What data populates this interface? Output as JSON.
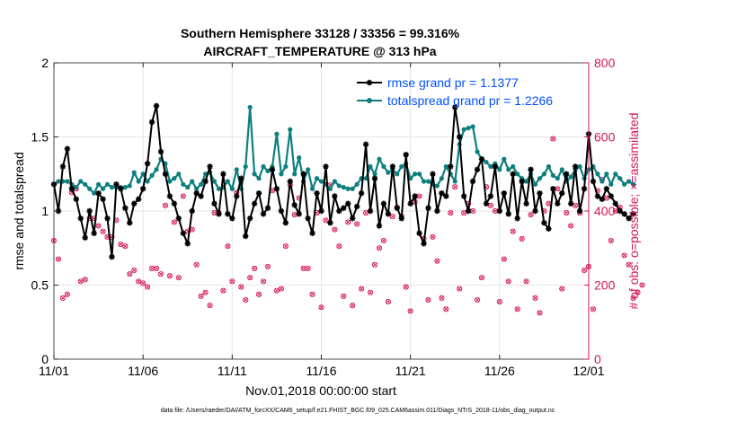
{
  "title": {
    "line1": "Southern Hemisphere 33128 / 33356 = 99.316%",
    "line2": "AIRCRAFT_TEMPERATURE @ 313 hPa"
  },
  "footer": {
    "xlabel": "Nov.01,2018 00:00:00 start",
    "datafile": "data file: /Users/raeder/DAI/ATM_forcXX/CAM6_setup/f.e21.FHIST_BGC.f09_025.CAM6assim.011/Diags_NTrS_2018-11/obs_diag_output.nc"
  },
  "colors": {
    "rmse": "#000000",
    "spread": "#0e7f7f",
    "obs": "#d4145a",
    "legend_text": "#0050ff",
    "grid": "#e6e6e6"
  },
  "chart_data": {
    "type": "line",
    "title": "Southern Hemisphere 33128 / 33356 = 99.316% — AIRCRAFT_TEMPERATURE @ 313 hPa",
    "xlabel": "Nov.01,2018 00:00:00 start",
    "ylabel": "rmse and totalspread",
    "y2label": "# of obs: o=possible; ×=assimilated",
    "xlim": [
      0,
      30
    ],
    "ylim": [
      0,
      2
    ],
    "y2lim": [
      0,
      800
    ],
    "xticks": [
      0,
      5,
      10,
      15,
      20,
      25,
      30
    ],
    "xticklabels": [
      "11/01",
      "11/06",
      "11/11",
      "11/16",
      "11/21",
      "11/26",
      "12/01"
    ],
    "yticks": [
      0,
      0.5,
      1,
      1.5,
      2
    ],
    "yticklabels": [
      "0",
      "0.5",
      "1",
      "1.5",
      "2"
    ],
    "y2ticks": [
      0,
      200,
      400,
      600,
      800
    ],
    "y2ticklabels": [
      "0",
      "200",
      "400",
      "600",
      "800"
    ],
    "legend": {
      "location": "top-right",
      "entries": [
        "rmse grand pr = 1.1377",
        "totalspread grand pr = 1.2266"
      ]
    },
    "x_step_days": 0.25,
    "series": [
      {
        "name": "rmse",
        "axis": "left",
        "values": [
          1.18,
          1.0,
          1.3,
          1.42,
          1.15,
          1.08,
          0.95,
          0.82,
          1.0,
          0.85,
          1.12,
          1.08,
          0.95,
          0.69,
          1.18,
          1.15,
          1.02,
          0.92,
          1.05,
          1.08,
          1.15,
          1.32,
          1.6,
          1.71,
          1.4,
          1.25,
          1.1,
          1.05,
          0.95,
          0.85,
          0.78,
          1.0,
          1.12,
          1.1,
          1.2,
          1.3,
          1.05,
          0.98,
          1.25,
          0.98,
          0.95,
          1.1,
          1.22,
          0.83,
          0.95,
          1.05,
          1.12,
          0.98,
          1.02,
          1.28,
          1.15,
          1.0,
          0.92,
          1.2,
          1.04,
          0.98,
          1.25,
          0.95,
          0.85,
          1.12,
          1.0,
          1.3,
          0.92,
          1.1,
          1.0,
          1.02,
          1.05,
          0.95,
          1.03,
          1.12,
          1.45,
          1.0,
          1.22,
          0.9,
          1.05,
          0.98,
          1.3,
          1.02,
          0.95,
          1.38,
          1.05,
          1.1,
          0.85,
          0.78,
          1.02,
          1.25,
          1.0,
          1.12,
          1.1,
          1.3,
          1.7,
          1.5,
          1.1,
          1.0,
          1.2,
          1.28,
          1.35,
          1.05,
          1.1,
          1.3,
          1.0,
          1.12,
          0.98,
          1.25,
          0.95,
          1.2,
          1.05,
          1.28,
          1.0,
          1.12,
          0.92,
          0.88,
          1.15,
          1.05,
          1.12,
          1.25,
          1.05,
          1.3,
          1.0,
          1.15,
          1.52,
          1.2,
          1.1,
          1.08,
          1.15,
          1.1,
          1.05,
          1.0,
          0.98,
          0.95,
          0.98
        ]
      },
      {
        "name": "totalspread",
        "axis": "left",
        "values": [
          1.18,
          1.2,
          1.2,
          1.2,
          1.18,
          1.16,
          1.2,
          1.18,
          1.15,
          1.12,
          1.18,
          1.15,
          1.18,
          1.16,
          1.16,
          1.16,
          1.16,
          1.17,
          1.26,
          1.2,
          1.25,
          1.2,
          1.24,
          1.28,
          1.35,
          1.32,
          1.2,
          1.22,
          1.25,
          1.18,
          1.16,
          1.2,
          1.15,
          1.18,
          1.25,
          1.26,
          1.2,
          1.15,
          1.16,
          1.2,
          1.15,
          1.28,
          1.15,
          1.3,
          1.7,
          1.25,
          1.22,
          1.3,
          1.27,
          1.3,
          1.52,
          1.25,
          1.3,
          1.55,
          1.25,
          1.36,
          1.2,
          1.28,
          1.15,
          1.22,
          1.2,
          1.18,
          1.15,
          1.2,
          1.17,
          1.16,
          1.15,
          1.15,
          1.18,
          1.22,
          1.22,
          1.3,
          1.25,
          1.35,
          1.3,
          1.26,
          1.28,
          1.25,
          1.3,
          1.32,
          1.22,
          1.25,
          1.25,
          1.2,
          1.2,
          1.18,
          1.17,
          1.22,
          1.3,
          1.25,
          1.2,
          1.45,
          1.55,
          1.56,
          1.57,
          1.4,
          1.35,
          1.33,
          1.3,
          1.32,
          1.28,
          1.35,
          1.28,
          1.3,
          1.25,
          1.22,
          1.2,
          1.25,
          1.18,
          1.22,
          1.25,
          1.3,
          1.24,
          1.22,
          1.28,
          1.2,
          1.23,
          1.28,
          1.3,
          1.22,
          1.28,
          1.3,
          1.25,
          1.2,
          1.25,
          1.18,
          1.25,
          1.22,
          1.18,
          1.2,
          1.18
        ]
      },
      {
        "name": "# obs possible",
        "axis": "right",
        "marker": "o",
        "values": [
          320,
          270,
          165,
          175,
          450,
          460,
          210,
          215,
          380,
          380,
          360,
          345,
          330,
          330,
          375,
          310,
          305,
          230,
          240,
          210,
          205,
          195,
          245,
          245,
          230,
          415,
          225,
          370,
          220,
          440,
          345,
          350,
          255,
          170,
          180,
          145,
          395,
          395,
          185,
          305,
          210,
          450,
          195,
          160,
          220,
          245,
          175,
          210,
          250,
          455,
          185,
          190,
          305,
          470,
          390,
          435,
          245,
          245,
          175,
          395,
          140,
          375,
          470,
          350,
          305,
          170,
          370,
          145,
          365,
          190,
          395,
          180,
          255,
          300,
          320,
          155,
          385,
          410,
          385,
          195,
          130,
          425,
          440,
          325,
          160,
          330,
          265,
          165,
          135,
          395,
          465,
          190,
          395,
          420,
          400,
          160,
          220,
          465,
          415,
          400,
          155,
          270,
          210,
          345,
          135,
          325,
          210,
          390,
          165,
          125,
          400,
          420,
          595,
          460,
          190,
          395,
          360,
          415,
          395,
          240,
          250,
          135,
          455,
          485,
          435,
          320,
          400,
          410,
          280,
          255,
          165,
          180,
          200
        ]
      },
      {
        "name": "# obs assimilated",
        "axis": "right",
        "marker": "x",
        "values": [
          320,
          270,
          165,
          175,
          450,
          460,
          210,
          215,
          380,
          380,
          360,
          345,
          330,
          330,
          375,
          310,
          305,
          230,
          240,
          210,
          205,
          195,
          245,
          245,
          230,
          415,
          225,
          370,
          220,
          440,
          345,
          350,
          255,
          170,
          180,
          145,
          395,
          395,
          185,
          305,
          210,
          450,
          195,
          160,
          220,
          245,
          175,
          210,
          250,
          455,
          185,
          190,
          305,
          470,
          390,
          435,
          245,
          245,
          175,
          395,
          140,
          375,
          470,
          350,
          305,
          170,
          370,
          145,
          365,
          190,
          395,
          180,
          255,
          300,
          320,
          155,
          385,
          410,
          385,
          195,
          130,
          425,
          440,
          325,
          160,
          330,
          265,
          165,
          135,
          395,
          465,
          190,
          395,
          420,
          400,
          160,
          220,
          465,
          415,
          400,
          155,
          270,
          210,
          345,
          135,
          325,
          210,
          390,
          165,
          125,
          400,
          420,
          595,
          460,
          190,
          395,
          360,
          415,
          395,
          240,
          250,
          135,
          455,
          485,
          435,
          320,
          400,
          410,
          280,
          255,
          165,
          180,
          200
        ]
      }
    ]
  }
}
